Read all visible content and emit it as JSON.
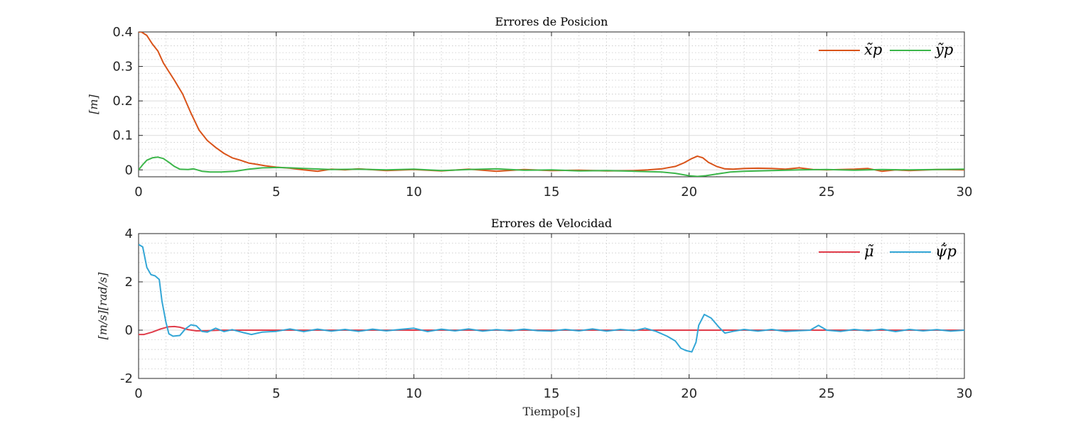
{
  "chart_data": [
    {
      "type": "line",
      "title": "Errores de Posicion",
      "xlabel": "",
      "ylabel": "[m]",
      "xlim": [
        0,
        30
      ],
      "ylim": [
        -0.02,
        0.4
      ],
      "xticks": [
        0,
        5,
        10,
        15,
        20,
        25,
        30
      ],
      "yticks": [
        0,
        0.1,
        0.2,
        0.3,
        0.4
      ],
      "xtick_labels": [
        "0",
        "5",
        "10",
        "15",
        "20",
        "25",
        "30"
      ],
      "ytick_labels": [
        "0",
        "0.1",
        "0.2",
        "0.3",
        "0.4"
      ],
      "grid": true,
      "minor_grid": true,
      "legend_position": "top-right",
      "series": [
        {
          "name": "x̃p",
          "color": "#d95319",
          "points": [
            [
              0,
              0.4
            ],
            [
              0.1,
              0.4
            ],
            [
              0.3,
              0.39
            ],
            [
              0.5,
              0.365
            ],
            [
              0.7,
              0.345
            ],
            [
              0.9,
              0.31
            ],
            [
              1.1,
              0.285
            ],
            [
              1.3,
              0.26
            ],
            [
              1.6,
              0.22
            ],
            [
              1.9,
              0.165
            ],
            [
              2.2,
              0.115
            ],
            [
              2.5,
              0.085
            ],
            [
              2.8,
              0.065
            ],
            [
              3.1,
              0.048
            ],
            [
              3.4,
              0.035
            ],
            [
              3.7,
              0.028
            ],
            [
              4.0,
              0.02
            ],
            [
              4.3,
              0.016
            ],
            [
              4.6,
              0.012
            ],
            [
              5.0,
              0.008
            ],
            [
              5.5,
              0.005
            ],
            [
              6.0,
              0.0
            ],
            [
              6.5,
              -0.004
            ],
            [
              7.0,
              0.002
            ],
            [
              7.5,
              0.0
            ],
            [
              8.0,
              0.003
            ],
            [
              9.0,
              -0.002
            ],
            [
              10.0,
              0.001
            ],
            [
              11.0,
              -0.003
            ],
            [
              12.0,
              0.002
            ],
            [
              13.0,
              -0.004
            ],
            [
              14.0,
              0.001
            ],
            [
              15.0,
              -0.002
            ],
            [
              16.0,
              -0.001
            ],
            [
              17.0,
              -0.003
            ],
            [
              18.0,
              -0.002
            ],
            [
              18.5,
              0.0
            ],
            [
              19.0,
              0.003
            ],
            [
              19.5,
              0.01
            ],
            [
              19.8,
              0.02
            ],
            [
              20.1,
              0.033
            ],
            [
              20.3,
              0.04
            ],
            [
              20.5,
              0.035
            ],
            [
              20.7,
              0.022
            ],
            [
              21.0,
              0.01
            ],
            [
              21.3,
              0.003
            ],
            [
              21.6,
              0.002
            ],
            [
              22.0,
              0.004
            ],
            [
              22.5,
              0.005
            ],
            [
              23.0,
              0.004
            ],
            [
              23.5,
              0.002
            ],
            [
              24.0,
              0.006
            ],
            [
              24.5,
              0.001
            ],
            [
              25.0,
              0.0
            ],
            [
              26.0,
              0.002
            ],
            [
              26.5,
              0.004
            ],
            [
              27.0,
              -0.004
            ],
            [
              27.5,
              0.0
            ],
            [
              28.0,
              -0.002
            ],
            [
              29.0,
              0.001
            ],
            [
              30.0,
              0.0
            ]
          ]
        },
        {
          "name": "ỹp",
          "color": "#3cb64a",
          "points": [
            [
              0,
              0.0
            ],
            [
              0.15,
              0.015
            ],
            [
              0.3,
              0.028
            ],
            [
              0.5,
              0.035
            ],
            [
              0.7,
              0.037
            ],
            [
              0.9,
              0.033
            ],
            [
              1.1,
              0.022
            ],
            [
              1.3,
              0.01
            ],
            [
              1.5,
              0.002
            ],
            [
              1.8,
              0.001
            ],
            [
              2.0,
              0.003
            ],
            [
              2.3,
              -0.004
            ],
            [
              2.6,
              -0.006
            ],
            [
              3.0,
              -0.006
            ],
            [
              3.5,
              -0.004
            ],
            [
              4.0,
              0.002
            ],
            [
              4.5,
              0.006
            ],
            [
              5.0,
              0.007
            ],
            [
              5.5,
              0.006
            ],
            [
              6.0,
              0.004
            ],
            [
              7.0,
              0.001
            ],
            [
              8.0,
              0.002
            ],
            [
              9.0,
              0.0
            ],
            [
              10.0,
              0.002
            ],
            [
              11.0,
              -0.002
            ],
            [
              12.0,
              0.001
            ],
            [
              13.0,
              0.003
            ],
            [
              14.0,
              -0.001
            ],
            [
              15.0,
              0.0
            ],
            [
              16.0,
              -0.003
            ],
            [
              17.0,
              -0.002
            ],
            [
              18.0,
              -0.004
            ],
            [
              19.0,
              -0.006
            ],
            [
              19.5,
              -0.01
            ],
            [
              20.0,
              -0.017
            ],
            [
              20.3,
              -0.019
            ],
            [
              20.6,
              -0.017
            ],
            [
              21.0,
              -0.012
            ],
            [
              21.5,
              -0.006
            ],
            [
              22.0,
              -0.004
            ],
            [
              22.5,
              -0.003
            ],
            [
              23.0,
              -0.002
            ],
            [
              24.0,
              0.0
            ],
            [
              25.0,
              0.001
            ],
            [
              26.0,
              -0.001
            ],
            [
              27.0,
              0.001
            ],
            [
              28.0,
              0.0
            ],
            [
              29.0,
              0.001
            ],
            [
              30.0,
              0.002
            ]
          ]
        }
      ]
    },
    {
      "type": "line",
      "title": "Errores de Velocidad",
      "xlabel": "Tiempo[s]",
      "ylabel": "[m/s][rad/s]",
      "xlim": [
        0,
        30
      ],
      "ylim": [
        -2,
        4
      ],
      "xticks": [
        0,
        5,
        10,
        15,
        20,
        25,
        30
      ],
      "yticks": [
        -2,
        0,
        2,
        4
      ],
      "xtick_labels": [
        "0",
        "5",
        "10",
        "15",
        "20",
        "25",
        "30"
      ],
      "ytick_labels": [
        "-2",
        "0",
        "2",
        "4"
      ],
      "grid": true,
      "minor_grid": true,
      "legend_position": "top-right",
      "series": [
        {
          "name": "μ̃",
          "color": "#e03c4a",
          "points": [
            [
              0,
              -0.18
            ],
            [
              0.2,
              -0.18
            ],
            [
              0.5,
              -0.08
            ],
            [
              0.8,
              0.05
            ],
            [
              1.1,
              0.14
            ],
            [
              1.3,
              0.15
            ],
            [
              1.5,
              0.12
            ],
            [
              1.8,
              0.02
            ],
            [
              2.1,
              -0.03
            ],
            [
              2.5,
              -0.02
            ],
            [
              3.0,
              0.0
            ],
            [
              30.0,
              0.0
            ]
          ]
        },
        {
          "name": "ψ̃̇p",
          "color": "#33a6d6",
          "points": [
            [
              0,
              3.55
            ],
            [
              0.15,
              3.45
            ],
            [
              0.3,
              2.6
            ],
            [
              0.45,
              2.3
            ],
            [
              0.6,
              2.25
            ],
            [
              0.75,
              2.1
            ],
            [
              0.85,
              1.2
            ],
            [
              1.0,
              0.3
            ],
            [
              1.1,
              -0.15
            ],
            [
              1.25,
              -0.25
            ],
            [
              1.5,
              -0.22
            ],
            [
              1.7,
              0.05
            ],
            [
              1.9,
              0.22
            ],
            [
              2.1,
              0.18
            ],
            [
              2.3,
              -0.05
            ],
            [
              2.5,
              -0.08
            ],
            [
              2.8,
              0.08
            ],
            [
              3.1,
              -0.06
            ],
            [
              3.4,
              0.02
            ],
            [
              3.8,
              -0.1
            ],
            [
              4.1,
              -0.18
            ],
            [
              4.5,
              -0.08
            ],
            [
              5.0,
              -0.05
            ],
            [
              5.5,
              0.05
            ],
            [
              6.0,
              -0.06
            ],
            [
              6.5,
              0.04
            ],
            [
              7.0,
              -0.04
            ],
            [
              7.5,
              0.03
            ],
            [
              8.0,
              -0.05
            ],
            [
              8.5,
              0.04
            ],
            [
              9.0,
              -0.03
            ],
            [
              9.5,
              0.03
            ],
            [
              10.0,
              0.08
            ],
            [
              10.5,
              -0.06
            ],
            [
              11.0,
              0.04
            ],
            [
              11.5,
              -0.03
            ],
            [
              12.0,
              0.05
            ],
            [
              12.5,
              -0.04
            ],
            [
              13.0,
              0.02
            ],
            [
              13.5,
              -0.03
            ],
            [
              14.0,
              0.04
            ],
            [
              14.5,
              -0.02
            ],
            [
              15.0,
              -0.04
            ],
            [
              15.5,
              0.03
            ],
            [
              16.0,
              -0.03
            ],
            [
              16.5,
              0.05
            ],
            [
              17.0,
              -0.04
            ],
            [
              17.5,
              0.03
            ],
            [
              18.0,
              -0.02
            ],
            [
              18.4,
              0.08
            ],
            [
              18.8,
              -0.05
            ],
            [
              19.2,
              -0.25
            ],
            [
              19.5,
              -0.45
            ],
            [
              19.7,
              -0.75
            ],
            [
              19.9,
              -0.85
            ],
            [
              20.1,
              -0.9
            ],
            [
              20.25,
              -0.5
            ],
            [
              20.35,
              0.2
            ],
            [
              20.55,
              0.65
            ],
            [
              20.8,
              0.5
            ],
            [
              21.1,
              0.1
            ],
            [
              21.3,
              -0.12
            ],
            [
              21.6,
              -0.05
            ],
            [
              22.0,
              0.03
            ],
            [
              22.5,
              -0.04
            ],
            [
              23.0,
              0.03
            ],
            [
              23.5,
              -0.05
            ],
            [
              24.0,
              -0.02
            ],
            [
              24.4,
              0.0
            ],
            [
              24.7,
              0.2
            ],
            [
              25.0,
              0.0
            ],
            [
              25.5,
              -0.05
            ],
            [
              26.0,
              0.03
            ],
            [
              26.5,
              -0.03
            ],
            [
              27.0,
              0.04
            ],
            [
              27.5,
              -0.06
            ],
            [
              28.0,
              0.03
            ],
            [
              28.5,
              -0.03
            ],
            [
              29.0,
              0.02
            ],
            [
              29.5,
              -0.04
            ],
            [
              30.0,
              0.0
            ]
          ]
        }
      ]
    }
  ]
}
